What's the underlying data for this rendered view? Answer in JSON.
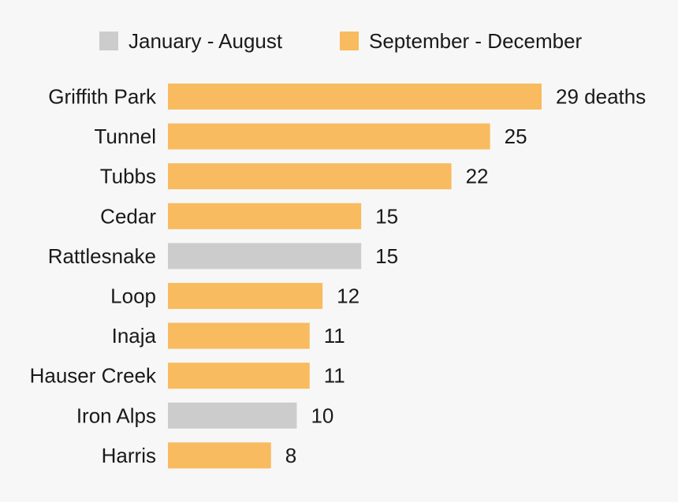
{
  "chart_data": {
    "type": "bar",
    "orientation": "horizontal",
    "title": "",
    "xlabel": "",
    "ylabel": "",
    "xlim": [
      0,
      29
    ],
    "grid": false,
    "legend_position": "top",
    "legend": [
      {
        "key": "jan_aug",
        "label": "January - August",
        "color": "#cccccc"
      },
      {
        "key": "sep_dec",
        "label": "September - December",
        "color": "#f8bb5f"
      }
    ],
    "categories": [
      "Griffith Park",
      "Tunnel",
      "Tubbs",
      "Cedar",
      "Rattlesnake",
      "Loop",
      "Inaja",
      "Hauser Creek",
      "Iron Alps",
      "Harris"
    ],
    "values": [
      29,
      25,
      22,
      15,
      15,
      12,
      11,
      11,
      10,
      8
    ],
    "series_key": [
      "sep_dec",
      "sep_dec",
      "sep_dec",
      "sep_dec",
      "jan_aug",
      "sep_dec",
      "sep_dec",
      "sep_dec",
      "jan_aug",
      "sep_dec"
    ],
    "value_labels": [
      "29 deaths",
      "25",
      "22",
      "15",
      "15",
      "12",
      "11",
      "11",
      "10",
      "8"
    ]
  }
}
